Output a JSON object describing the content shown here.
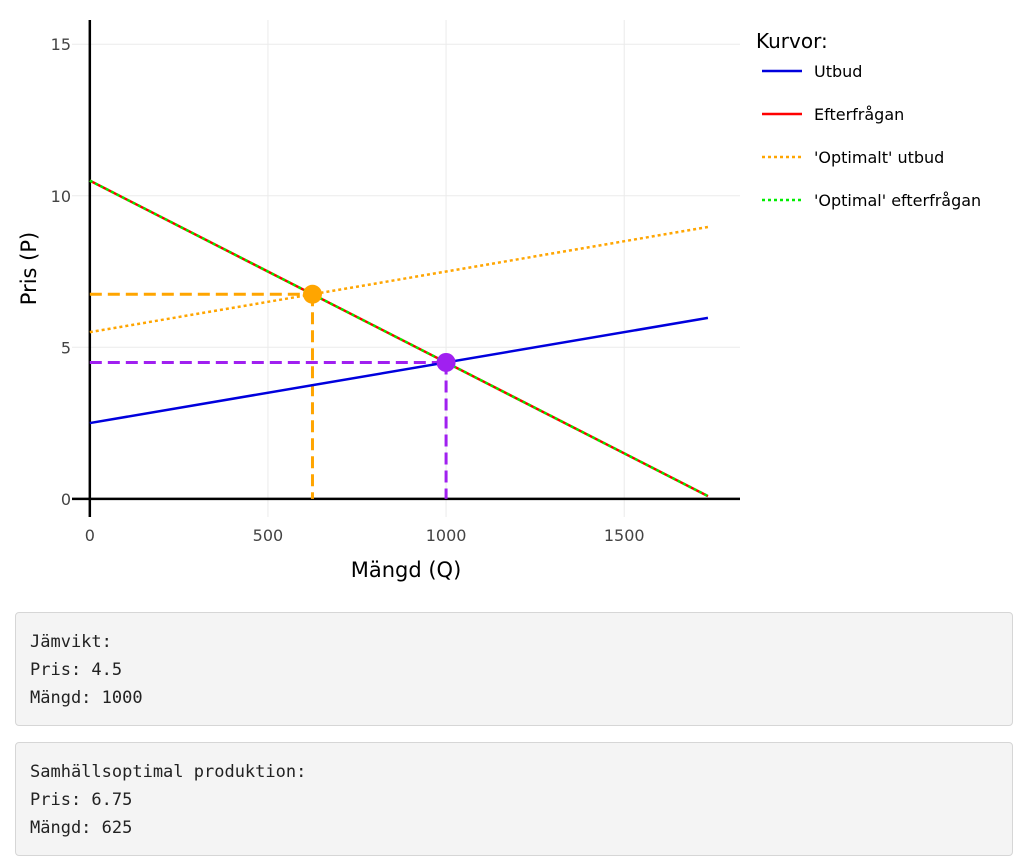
{
  "chart_data": {
    "type": "line",
    "xlabel": "Mängd (Q)",
    "ylabel": "Pris (P)",
    "xlim": [
      -50,
      1825
    ],
    "ylim": [
      -0.6,
      15.8
    ],
    "xticks": [
      0,
      500,
      1000,
      1500
    ],
    "yticks": [
      0,
      5,
      10,
      15
    ],
    "x_tick_labels": [
      "0",
      "500",
      "1000",
      "1500"
    ],
    "y_tick_labels": [
      "0",
      "5",
      "10",
      "15"
    ],
    "grid": true,
    "legend": {
      "title": "Kurvor:",
      "placement": "top-right, outside plot"
    },
    "series": [
      {
        "name": "Utbud",
        "color": "#0000dd",
        "dash": "solid",
        "x": [
          0,
          1735
        ],
        "y": [
          2.5,
          5.97
        ]
      },
      {
        "name": "Efterfrågan",
        "color": "#ff0000",
        "dash": "solid",
        "x": [
          0,
          1735
        ],
        "y": [
          10.5,
          0.09
        ]
      },
      {
        "name": "'Optimalt' utbud",
        "color": "#ffa500",
        "dash": "dot",
        "x": [
          0,
          1735
        ],
        "y": [
          5.5,
          8.97
        ]
      },
      {
        "name": "'Optimal' efterfrågan",
        "color": "#00ee00",
        "dash": "dot",
        "x": [
          0,
          1735
        ],
        "y": [
          10.5,
          0.09
        ]
      }
    ],
    "points": [
      {
        "x": 1000,
        "y": 4.5,
        "color": "#a020f0"
      },
      {
        "x": 625,
        "y": 6.75,
        "color": "#ffa500"
      }
    ]
  },
  "equilibrium_box": {
    "heading": "Jämvikt:",
    "price": "Pris: 4.5",
    "quantity": "Mängd: 1000"
  },
  "optimal_box": {
    "heading": "Samhällsoptimal produktion:",
    "price": "Pris: 6.75",
    "quantity": "Mängd: 625"
  }
}
